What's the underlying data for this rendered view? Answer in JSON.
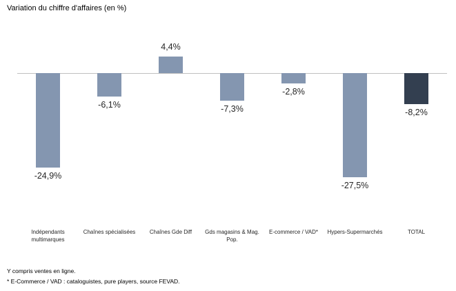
{
  "chart_data": {
    "type": "bar",
    "title": "Variation du chiffre d'affaires (en %)",
    "categories": [
      "Indépendants\nmultimarques",
      "Chaînes spécialisées",
      "Chaînes Gde Diff",
      "Gds magasins & Mag.\nPop.",
      "E-commerce / VAD*",
      "Hypers-Supermarchés",
      "TOTAL"
    ],
    "values": [
      -24.9,
      -6.1,
      4.4,
      -7.3,
      -2.8,
      -27.5,
      -8.2
    ],
    "value_labels": [
      "-24,9%",
      "-6,1%",
      "4,4%",
      "-7,3%",
      "-2,8%",
      "-27,5%",
      "-8,2%"
    ],
    "highlight_index": 6,
    "bar_colors": {
      "default": "#8496B0",
      "total": "#333F50"
    },
    "axis_color": "#BFBFBF",
    "xlabel": "",
    "ylabel": "",
    "ylim": [
      -30,
      6
    ],
    "grid": false,
    "legend": "none"
  },
  "footnotes": [
    "Y compris ventes en ligne.",
    "* E-Commerce / VAD : cataloguistes, pure players, source FEVAD."
  ]
}
